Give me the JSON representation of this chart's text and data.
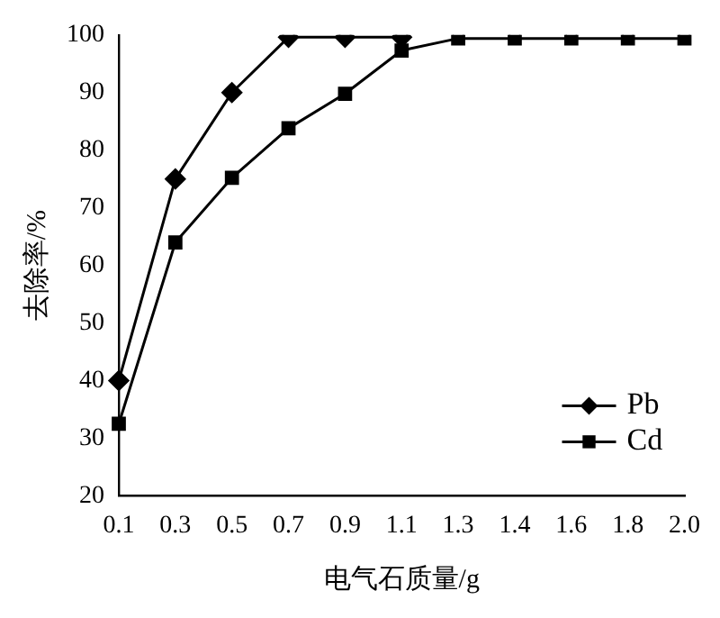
{
  "chart_data": {
    "type": "line",
    "xlabel": "电气石质量/g",
    "ylabel": "去除率/%",
    "categories": [
      "0.1",
      "0.3",
      "0.5",
      "0.7",
      "0.9",
      "1.1",
      "1.3",
      "1.4",
      "1.6",
      "1.8",
      "2.0"
    ],
    "series": [
      {
        "name": "Pb",
        "color": "#000000",
        "marker": "diamond",
        "values": [
          40,
          75,
          90,
          99.6,
          99.6,
          99.6,
          null,
          null,
          null,
          null,
          null
        ]
      },
      {
        "name": "Cd",
        "color": "#000000",
        "marker": "square",
        "values": [
          32.5,
          64,
          75.2,
          83.8,
          89.8,
          97.3,
          99.4,
          99.4,
          99.4,
          99.4,
          99.4
        ]
      }
    ],
    "ylim": [
      20,
      100
    ],
    "yticks": [
      20,
      30,
      40,
      50,
      60,
      70,
      80,
      90,
      100
    ],
    "grid": false,
    "legend": "bottom right",
    "line_style": "solid"
  }
}
